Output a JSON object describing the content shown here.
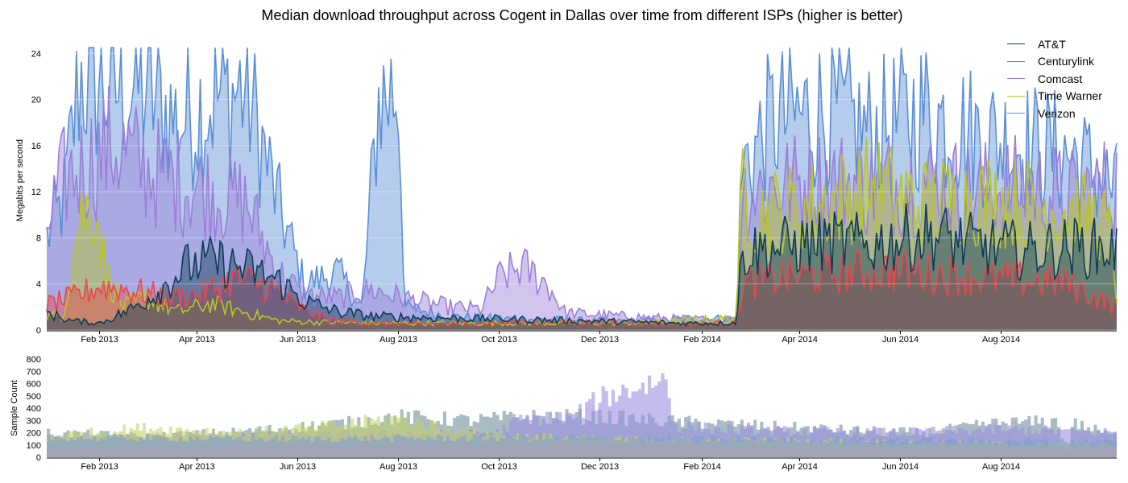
{
  "chart_data": [
    {
      "type": "area",
      "title": "Median download throughput across Cogent in Dallas over time from different ISPs (higher is better)",
      "ylabel": "Megabits per second",
      "xlim": [
        "2012-12-31",
        "2014-10-10"
      ],
      "ylim": [
        0,
        25
      ],
      "yticks": [
        0,
        4,
        8,
        12,
        16,
        20,
        24
      ],
      "xticks": [
        {
          "date": "2013-02-01",
          "label": "Feb 2013"
        },
        {
          "date": "2013-04-01",
          "label": "Apr 2013"
        },
        {
          "date": "2013-06-01",
          "label": "Jun 2013"
        },
        {
          "date": "2013-08-01",
          "label": "Aug 2013"
        },
        {
          "date": "2013-10-01",
          "label": "Oct 2013"
        },
        {
          "date": "2013-12-01",
          "label": "Dec 2013"
        },
        {
          "date": "2014-02-01",
          "label": "Feb 2014"
        },
        {
          "date": "2014-04-01",
          "label": "Apr 2014"
        },
        {
          "date": "2014-06-01",
          "label": "Jun 2014"
        },
        {
          "date": "2014-08-01",
          "label": "Aug 2014"
        }
      ],
      "legend_position": "top-right",
      "series": [
        {
          "name": "AT&T",
          "color": "#0d3d56",
          "points": [
            [
              "2012-12-31",
              1.5
            ],
            [
              "2013-01-15",
              0.8
            ],
            [
              "2013-02-01",
              0.6
            ],
            [
              "2013-02-20",
              1.8
            ],
            [
              "2013-03-10",
              3.5
            ],
            [
              "2013-03-25",
              5.5
            ],
            [
              "2013-04-10",
              6.0
            ],
            [
              "2013-05-01",
              5.3
            ],
            [
              "2013-05-20",
              4.3
            ],
            [
              "2013-06-05",
              2.5
            ],
            [
              "2013-06-25",
              1.6
            ],
            [
              "2013-07-15",
              1.2
            ],
            [
              "2013-08-10",
              1.1
            ],
            [
              "2013-09-15",
              1.0
            ],
            [
              "2013-10-20",
              0.9
            ],
            [
              "2013-11-20",
              0.8
            ],
            [
              "2013-12-20",
              0.7
            ],
            [
              "2014-01-15",
              0.6
            ],
            [
              "2014-02-15",
              0.6
            ],
            [
              "2014-02-22",
              0.7
            ],
            [
              "2014-02-25",
              6.8
            ],
            [
              "2014-03-20",
              7.2
            ],
            [
              "2014-04-15",
              7.6
            ],
            [
              "2014-05-15",
              7.4
            ],
            [
              "2014-06-05",
              8.0
            ],
            [
              "2014-06-20",
              8.3
            ],
            [
              "2014-07-15",
              7.4
            ],
            [
              "2014-08-15",
              6.9
            ],
            [
              "2014-09-15",
              7.2
            ],
            [
              "2014-10-10",
              7.0
            ]
          ]
        },
        {
          "name": "Centurylink",
          "color": "#e8474a",
          "points": [
            [
              "2012-12-31",
              2.2
            ],
            [
              "2013-01-15",
              2.8
            ],
            [
              "2013-02-01",
              3.8
            ],
            [
              "2013-02-20",
              3.5
            ],
            [
              "2013-03-15",
              2.8
            ],
            [
              "2013-04-05",
              3.2
            ],
            [
              "2013-04-25",
              4.5
            ],
            [
              "2013-05-15",
              3.8
            ],
            [
              "2013-06-01",
              2.0
            ],
            [
              "2013-06-20",
              0.9
            ],
            [
              "2013-07-15",
              0.6
            ],
            [
              "2013-08-10",
              0.5
            ],
            [
              "2013-09-15",
              0.6
            ],
            [
              "2013-10-20",
              0.7
            ],
            [
              "2013-11-20",
              0.7
            ],
            [
              "2013-12-20",
              0.6
            ],
            [
              "2014-01-15",
              0.5
            ],
            [
              "2014-02-15",
              0.6
            ],
            [
              "2014-02-22",
              0.7
            ],
            [
              "2014-02-25",
              4.0
            ],
            [
              "2014-03-20",
              4.6
            ],
            [
              "2014-04-15",
              4.8
            ],
            [
              "2014-05-15",
              5.2
            ],
            [
              "2014-06-15",
              5.0
            ],
            [
              "2014-07-15",
              4.6
            ],
            [
              "2014-08-15",
              4.3
            ],
            [
              "2014-09-10",
              4.1
            ],
            [
              "2014-09-25",
              3.0
            ],
            [
              "2014-10-10",
              2.0
            ]
          ]
        },
        {
          "name": "Comcast",
          "color": "#9b7fd8",
          "points": [
            [
              "2012-12-31",
              9.0
            ],
            [
              "2013-01-10",
              13.0
            ],
            [
              "2013-01-25",
              14.5
            ],
            [
              "2013-02-10",
              16.0
            ],
            [
              "2013-03-01",
              14.0
            ],
            [
              "2013-03-20",
              13.0
            ],
            [
              "2013-04-10",
              12.0
            ],
            [
              "2013-05-01",
              11.0
            ],
            [
              "2013-05-20",
              5.0
            ],
            [
              "2013-06-05",
              3.0
            ],
            [
              "2013-06-25",
              2.8
            ],
            [
              "2013-07-15",
              3.5
            ],
            [
              "2013-08-10",
              2.6
            ],
            [
              "2013-09-01",
              2.0
            ],
            [
              "2013-09-20",
              1.8
            ],
            [
              "2013-10-01",
              4.5
            ],
            [
              "2013-10-15",
              5.5
            ],
            [
              "2013-10-30",
              4.0
            ],
            [
              "2013-11-10",
              1.5
            ],
            [
              "2013-12-15",
              1.2
            ],
            [
              "2014-01-15",
              1.0
            ],
            [
              "2014-02-15",
              0.9
            ],
            [
              "2014-02-22",
              0.9
            ],
            [
              "2014-02-25",
              12.0
            ],
            [
              "2014-03-20",
              12.5
            ],
            [
              "2014-04-15",
              13.0
            ],
            [
              "2014-05-15",
              12.5
            ],
            [
              "2014-06-15",
              13.0
            ],
            [
              "2014-07-15",
              12.0
            ],
            [
              "2014-08-15",
              12.5
            ],
            [
              "2014-09-15",
              11.5
            ],
            [
              "2014-10-10",
              12.7
            ]
          ]
        },
        {
          "name": "Time Warner",
          "color": "#b9c624",
          "points": [
            [
              "2012-12-31",
              1.2
            ],
            [
              "2013-01-10",
              1.3
            ],
            [
              "2013-01-20",
              10.0
            ],
            [
              "2013-01-30",
              11.0
            ],
            [
              "2013-02-05",
              5.0
            ],
            [
              "2013-02-15",
              2.0
            ],
            [
              "2013-03-01",
              2.8
            ],
            [
              "2013-03-20",
              1.6
            ],
            [
              "2013-04-10",
              2.3
            ],
            [
              "2013-05-01",
              1.5
            ],
            [
              "2013-05-20",
              0.8
            ],
            [
              "2013-06-10",
              0.7
            ],
            [
              "2013-07-15",
              0.6
            ],
            [
              "2013-08-10",
              0.6
            ],
            [
              "2013-09-15",
              0.6
            ],
            [
              "2013-10-20",
              0.6
            ],
            [
              "2013-11-20",
              0.6
            ],
            [
              "2013-12-20",
              0.6
            ],
            [
              "2014-01-15",
              0.8
            ],
            [
              "2014-02-15",
              1.0
            ],
            [
              "2014-02-22",
              1.1
            ],
            [
              "2014-02-25",
              13.5
            ],
            [
              "2014-03-05",
              10.0
            ],
            [
              "2014-03-20",
              10.5
            ],
            [
              "2014-04-15",
              11.0
            ],
            [
              "2014-05-15",
              12.5
            ],
            [
              "2014-06-15",
              11.0
            ],
            [
              "2014-07-15",
              11.5
            ],
            [
              "2014-08-15",
              11.0
            ],
            [
              "2014-09-15",
              10.5
            ],
            [
              "2014-10-05",
              9.0
            ],
            [
              "2014-10-10",
              3.0
            ]
          ]
        },
        {
          "name": "Verizon",
          "color": "#5a8fd6",
          "points": [
            [
              "2012-12-31",
              8.0
            ],
            [
              "2013-01-10",
              11.0
            ],
            [
              "2013-01-20",
              22.0
            ],
            [
              "2013-02-10",
              21.0
            ],
            [
              "2013-03-01",
              21.0
            ],
            [
              "2013-03-20",
              18.0
            ],
            [
              "2013-04-10",
              20.0
            ],
            [
              "2013-05-01",
              21.0
            ],
            [
              "2013-05-20",
              11.0
            ],
            [
              "2013-06-05",
              4.0
            ],
            [
              "2013-06-25",
              5.0
            ],
            [
              "2013-07-10",
              2.0
            ],
            [
              "2013-07-20",
              20.0
            ],
            [
              "2013-08-01",
              21.0
            ],
            [
              "2013-08-05",
              2.0
            ],
            [
              "2013-09-01",
              1.2
            ],
            [
              "2013-10-01",
              1.0
            ],
            [
              "2013-11-01",
              0.9
            ],
            [
              "2013-12-01",
              0.8
            ],
            [
              "2014-01-01",
              0.8
            ],
            [
              "2014-02-01",
              1.0
            ],
            [
              "2014-02-22",
              1.0
            ],
            [
              "2014-02-25",
              14.0
            ],
            [
              "2014-03-15",
              18.0
            ],
            [
              "2014-04-15",
              19.0
            ],
            [
              "2014-05-15",
              17.0
            ],
            [
              "2014-06-15",
              19.0
            ],
            [
              "2014-07-15",
              17.0
            ],
            [
              "2014-08-15",
              16.0
            ],
            [
              "2014-09-15",
              15.0
            ],
            [
              "2014-10-10",
              12.0
            ]
          ]
        }
      ]
    },
    {
      "type": "bar",
      "ylabel": "Sample Count",
      "xlim": [
        "2012-12-31",
        "2014-10-10"
      ],
      "ylim": [
        0,
        820
      ],
      "yticks": [
        0,
        100,
        200,
        300,
        400,
        500,
        600,
        700,
        800
      ],
      "xticks": [
        {
          "date": "2013-02-01",
          "label": "Feb 2013"
        },
        {
          "date": "2013-04-01",
          "label": "Apr 2013"
        },
        {
          "date": "2013-06-01",
          "label": "Jun 2013"
        },
        {
          "date": "2013-08-01",
          "label": "Aug 2013"
        },
        {
          "date": "2013-10-01",
          "label": "Oct 2013"
        },
        {
          "date": "2013-12-01",
          "label": "Dec 2013"
        },
        {
          "date": "2014-02-01",
          "label": "Feb 2014"
        },
        {
          "date": "2014-04-01",
          "label": "Apr 2014"
        },
        {
          "date": "2014-06-01",
          "label": "Jun 2014"
        },
        {
          "date": "2014-08-01",
          "label": "Aug 2014"
        }
      ],
      "series": [
        {
          "name": "AT&T",
          "color": "#6f8f9d",
          "points": [
            [
              "2012-12-31",
              200
            ],
            [
              "2013-03-01",
              170
            ],
            [
              "2013-05-01",
              210
            ],
            [
              "2013-07-01",
              280
            ],
            [
              "2013-08-01",
              330
            ],
            [
              "2013-09-15",
              300
            ],
            [
              "2013-10-15",
              330
            ],
            [
              "2013-12-01",
              330
            ],
            [
              "2014-01-15",
              290
            ],
            [
              "2014-03-01",
              260
            ],
            [
              "2014-05-01",
              220
            ],
            [
              "2014-06-15",
              200
            ],
            [
              "2014-08-01",
              280
            ],
            [
              "2014-09-05",
              290
            ],
            [
              "2014-09-06",
              30
            ],
            [
              "2014-09-12",
              30
            ],
            [
              "2014-09-13",
              280
            ],
            [
              "2014-10-10",
              170
            ]
          ]
        },
        {
          "name": "Centurylink",
          "color": "#e8a090",
          "points": [
            [
              "2012-12-31",
              80
            ],
            [
              "2013-06-01",
              90
            ],
            [
              "2013-10-01",
              100
            ],
            [
              "2013-12-01",
              110
            ],
            [
              "2014-03-01",
              90
            ],
            [
              "2014-06-01",
              80
            ],
            [
              "2014-10-10",
              70
            ]
          ]
        },
        {
          "name": "Comcast",
          "color": "#9b8fe0",
          "points": [
            [
              "2012-12-31",
              150
            ],
            [
              "2013-06-01",
              180
            ],
            [
              "2013-10-01",
              200
            ],
            [
              "2013-10-10",
              300
            ],
            [
              "2013-11-15",
              330
            ],
            [
              "2013-12-01",
              480
            ],
            [
              "2013-12-20",
              560
            ],
            [
              "2014-01-10",
              640
            ],
            [
              "2014-01-15",
              260
            ],
            [
              "2014-03-01",
              220
            ],
            [
              "2014-06-01",
              200
            ],
            [
              "2014-08-01",
              230
            ],
            [
              "2014-10-10",
              200
            ]
          ]
        },
        {
          "name": "Time Warner",
          "color": "#c4d26a",
          "points": [
            [
              "2012-12-31",
              170
            ],
            [
              "2013-03-01",
              240
            ],
            [
              "2013-05-01",
              200
            ],
            [
              "2013-07-01",
              270
            ],
            [
              "2013-08-01",
              320
            ],
            [
              "2013-09-01",
              230
            ],
            [
              "2013-10-01",
              180
            ],
            [
              "2013-12-01",
              150
            ],
            [
              "2014-02-01",
              140
            ],
            [
              "2014-04-01",
              140
            ],
            [
              "2014-06-01",
              120
            ],
            [
              "2014-08-01",
              110
            ],
            [
              "2014-10-10",
              100
            ]
          ]
        },
        {
          "name": "Verizon",
          "color": "#7f9fd0",
          "points": [
            [
              "2012-12-31",
              160
            ],
            [
              "2013-06-01",
              150
            ],
            [
              "2013-10-01",
              160
            ],
            [
              "2014-02-01",
              150
            ],
            [
              "2014-06-01",
              140
            ],
            [
              "2014-10-10",
              130
            ]
          ]
        }
      ]
    }
  ]
}
